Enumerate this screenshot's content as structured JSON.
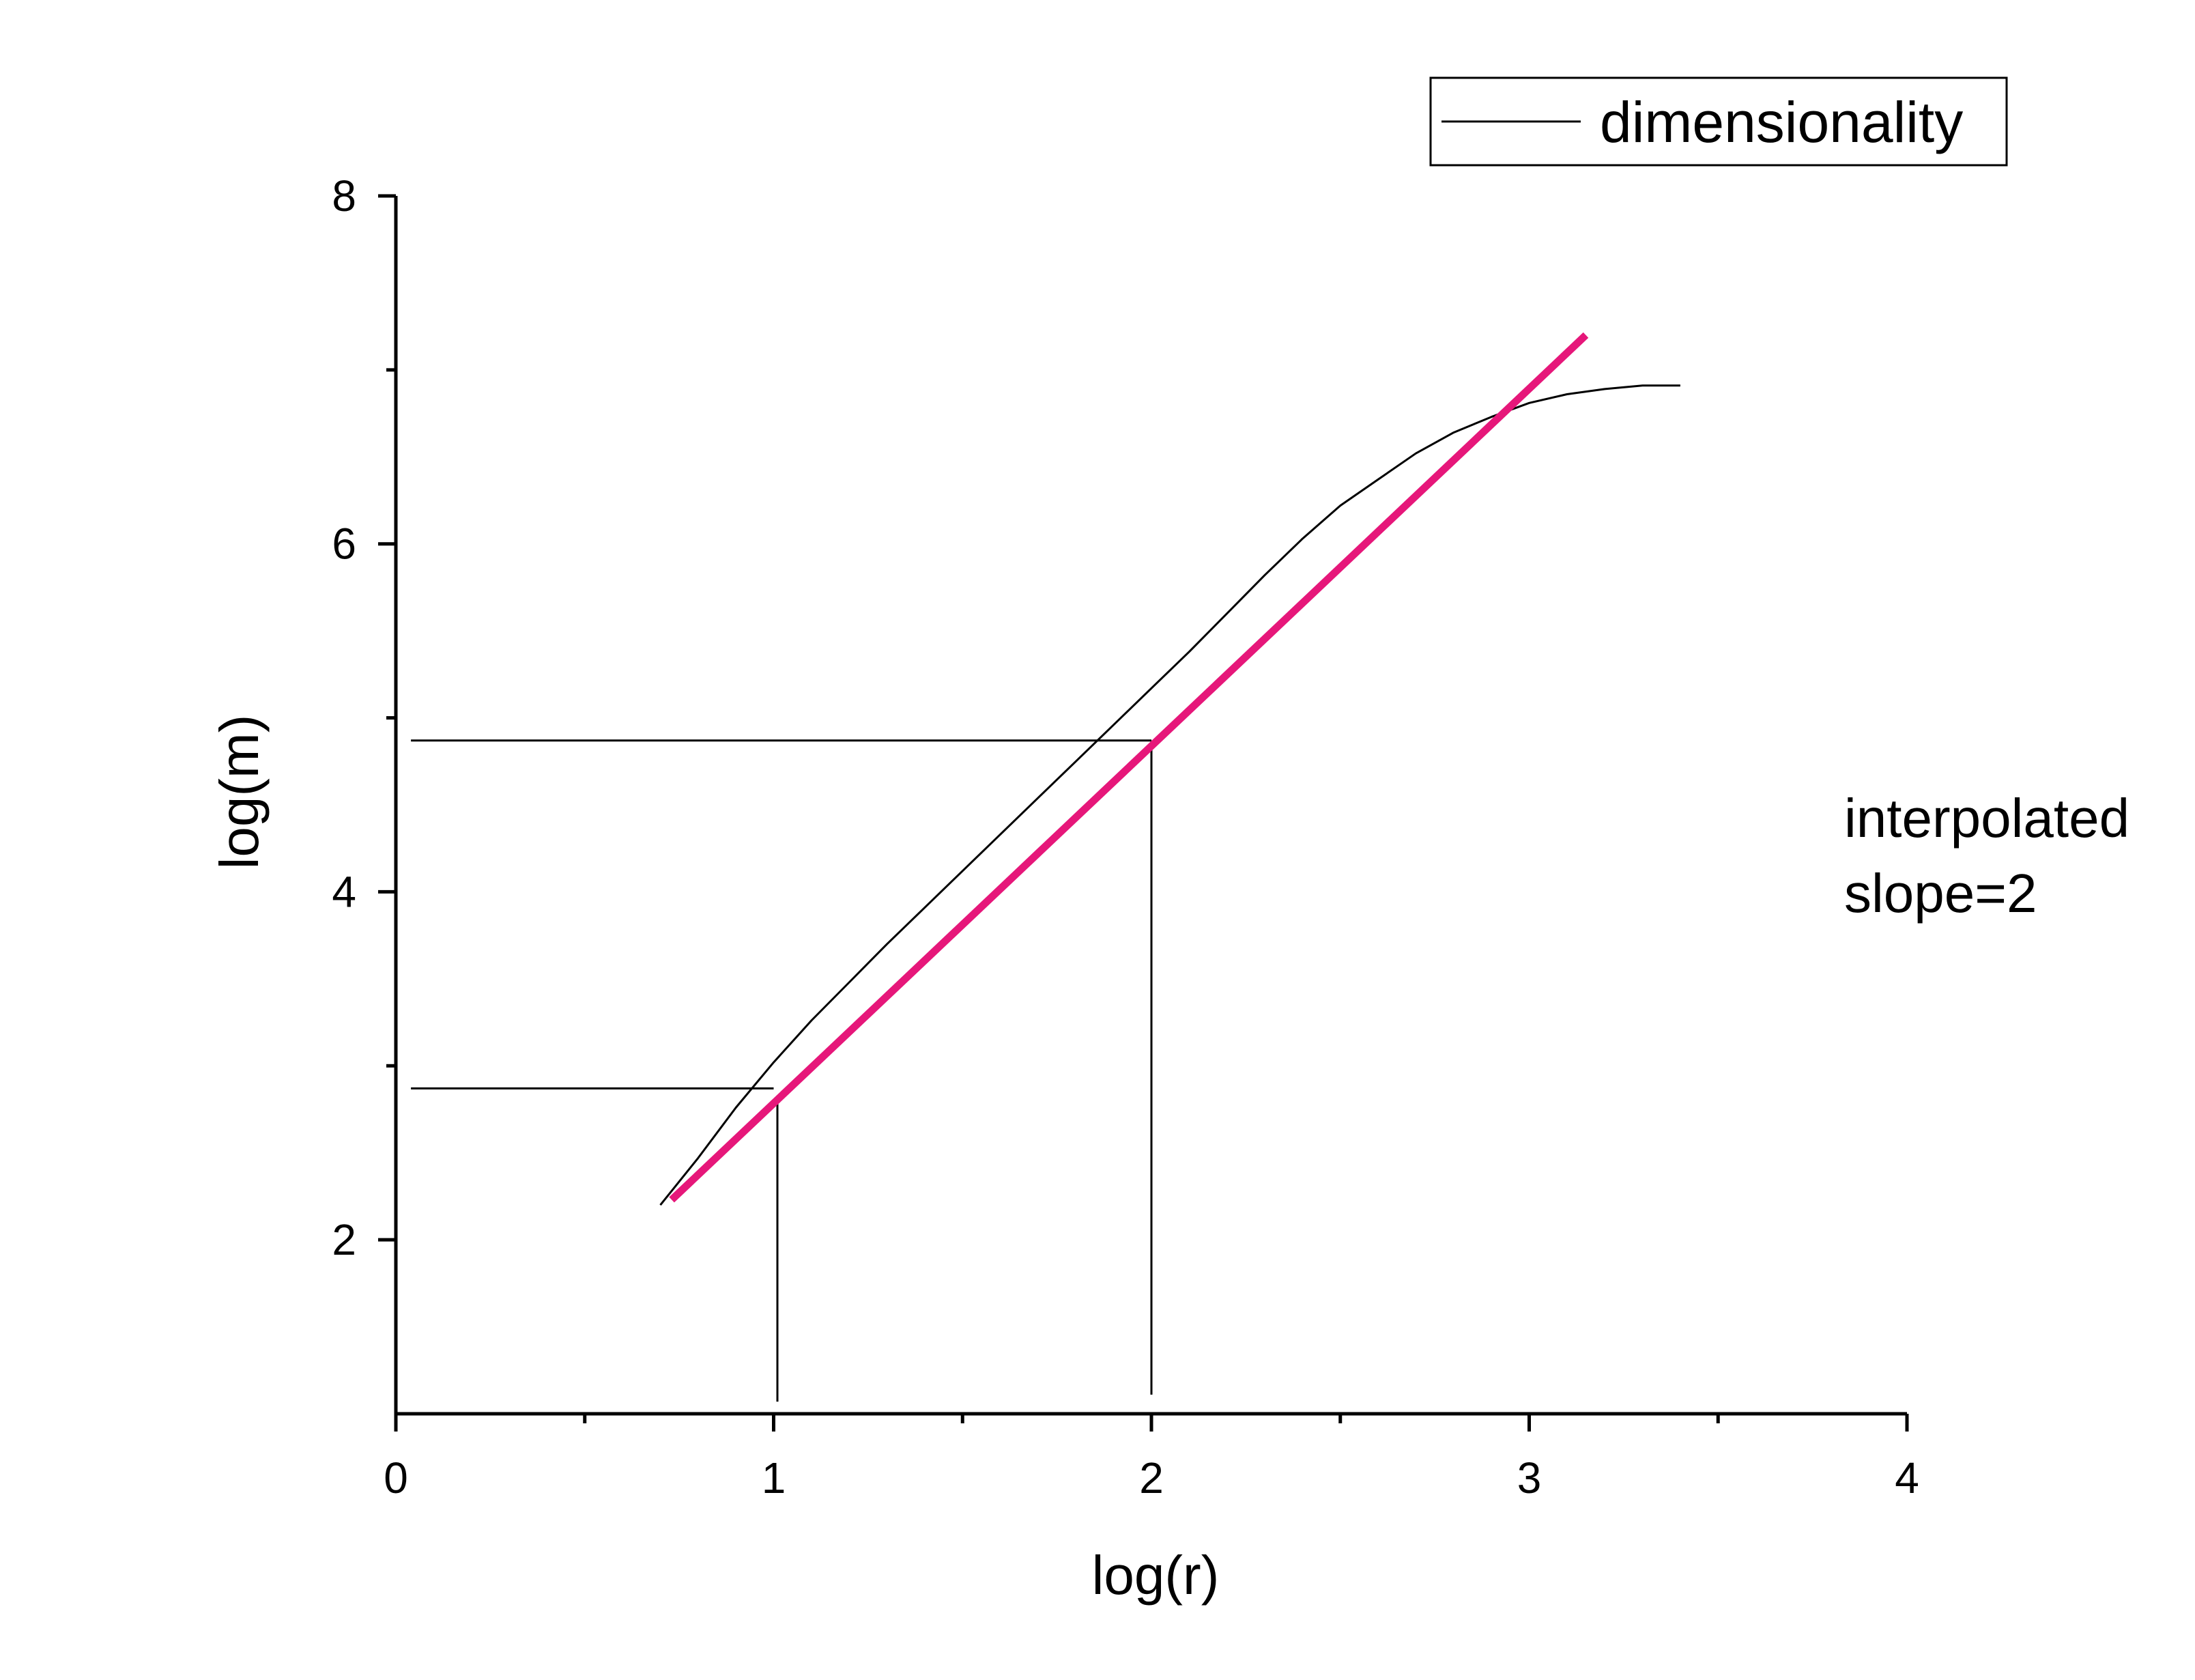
{
  "chart_data": {
    "type": "line",
    "xlabel": "log(r)",
    "ylabel": "log(m)",
    "xlim": [
      0,
      4
    ],
    "ylim": [
      1,
      8
    ],
    "x_ticks": [
      0,
      1,
      2,
      3,
      4
    ],
    "y_ticks": [
      2,
      4,
      6,
      8
    ],
    "x_minor_ticks": [
      0.5,
      1.5,
      2.5,
      3.5
    ],
    "y_minor_ticks": [
      3,
      5,
      7
    ],
    "grid": false,
    "legend": {
      "position": "top-right",
      "entries": [
        "dimensionality"
      ]
    },
    "series": [
      {
        "name": "dimensionality",
        "color": "#000000",
        "points": [
          [
            0.7,
            2.2
          ],
          [
            0.8,
            2.47
          ],
          [
            0.9,
            2.76
          ],
          [
            1.0,
            3.02
          ],
          [
            1.1,
            3.26
          ],
          [
            1.2,
            3.48
          ],
          [
            1.3,
            3.7
          ],
          [
            1.4,
            3.91
          ],
          [
            1.5,
            4.12
          ],
          [
            1.6,
            4.33
          ],
          [
            1.7,
            4.54
          ],
          [
            1.8,
            4.75
          ],
          [
            1.9,
            4.96
          ],
          [
            2.0,
            5.17
          ],
          [
            2.1,
            5.38
          ],
          [
            2.2,
            5.6
          ],
          [
            2.3,
            5.82
          ],
          [
            2.4,
            6.03
          ],
          [
            2.5,
            6.22
          ],
          [
            2.6,
            6.37
          ],
          [
            2.7,
            6.52
          ],
          [
            2.8,
            6.64
          ],
          [
            2.9,
            6.73
          ],
          [
            3.0,
            6.81
          ],
          [
            3.1,
            6.86
          ],
          [
            3.2,
            6.89
          ],
          [
            3.3,
            6.91
          ],
          [
            3.4,
            6.91
          ]
        ]
      }
    ],
    "fit_line": {
      "color": "#e6177a",
      "points": [
        [
          0.73,
          2.23
        ],
        [
          3.15,
          7.2
        ]
      ]
    },
    "reference_lines": [
      {
        "points": [
          [
            0.04,
            2.87
          ],
          [
            1.0,
            2.87
          ]
        ]
      },
      {
        "points": [
          [
            1.01,
            2.8
          ],
          [
            1.01,
            1.07
          ]
        ]
      },
      {
        "points": [
          [
            0.04,
            4.87
          ],
          [
            2.0,
            4.87
          ]
        ]
      },
      {
        "points": [
          [
            2.0,
            4.87
          ],
          [
            2.0,
            1.11
          ]
        ]
      }
    ],
    "annotation": {
      "lines": [
        "interpolated",
        "slope=2"
      ]
    }
  }
}
